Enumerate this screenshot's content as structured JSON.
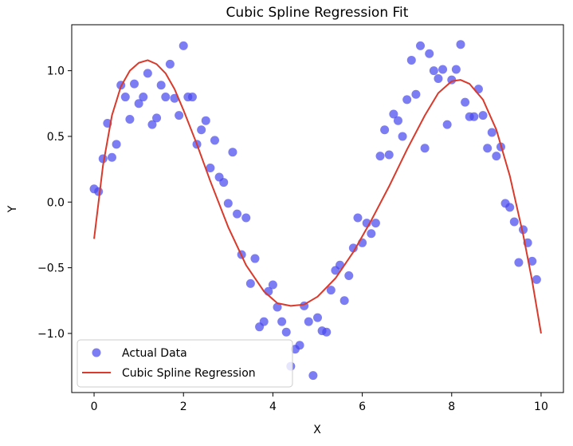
{
  "chart_data": {
    "type": "scatter",
    "title": "Cubic Spline Regression Fit",
    "xlabel": "X",
    "ylabel": "Y",
    "xlim": [
      -0.5,
      10.5
    ],
    "ylim": [
      -1.45,
      1.35
    ],
    "xticks": [
      0,
      2,
      4,
      6,
      8,
      10
    ],
    "xtick_labels": [
      "0",
      "2",
      "4",
      "6",
      "8",
      "10"
    ],
    "yticks": [
      -1.0,
      -0.5,
      0.0,
      0.5,
      1.0
    ],
    "ytick_labels": [
      "−1.0",
      "−0.5",
      "0.0",
      "0.5",
      "1.0"
    ],
    "grid": false,
    "legend_position": "lower-left",
    "series": [
      {
        "name": "Actual Data",
        "kind": "scatter",
        "color": "#4a4aee",
        "points": [
          [
            0.0,
            0.1
          ],
          [
            0.1,
            0.08
          ],
          [
            0.2,
            0.33
          ],
          [
            0.3,
            0.6
          ],
          [
            0.4,
            0.34
          ],
          [
            0.5,
            0.44
          ],
          [
            0.6,
            0.89
          ],
          [
            0.7,
            0.8
          ],
          [
            0.8,
            0.63
          ],
          [
            0.9,
            0.9
          ],
          [
            1.0,
            0.75
          ],
          [
            1.1,
            0.8
          ],
          [
            1.2,
            0.98
          ],
          [
            1.3,
            0.59
          ],
          [
            1.4,
            0.64
          ],
          [
            1.5,
            0.89
          ],
          [
            1.6,
            0.8
          ],
          [
            1.7,
            1.05
          ],
          [
            1.8,
            0.79
          ],
          [
            1.9,
            0.66
          ],
          [
            2.0,
            1.19
          ],
          [
            2.1,
            0.8
          ],
          [
            2.2,
            0.8
          ],
          [
            2.3,
            0.44
          ],
          [
            2.4,
            0.55
          ],
          [
            2.5,
            0.62
          ],
          [
            2.6,
            0.26
          ],
          [
            2.7,
            0.47
          ],
          [
            2.8,
            0.19
          ],
          [
            2.9,
            0.15
          ],
          [
            3.0,
            -0.01
          ],
          [
            3.1,
            0.38
          ],
          [
            3.2,
            -0.09
          ],
          [
            3.3,
            -0.4
          ],
          [
            3.4,
            -0.12
          ],
          [
            3.5,
            -0.62
          ],
          [
            3.6,
            -0.43
          ],
          [
            3.7,
            -0.95
          ],
          [
            3.8,
            -0.91
          ],
          [
            3.9,
            -0.68
          ],
          [
            4.0,
            -0.63
          ],
          [
            4.1,
            -0.8
          ],
          [
            4.2,
            -0.91
          ],
          [
            4.3,
            -0.99
          ],
          [
            4.4,
            -1.25
          ],
          [
            4.5,
            -1.12
          ],
          [
            4.6,
            -1.09
          ],
          [
            4.7,
            -0.79
          ],
          [
            4.8,
            -0.91
          ],
          [
            4.9,
            -1.32
          ],
          [
            5.0,
            -0.88
          ],
          [
            5.1,
            -0.98
          ],
          [
            5.2,
            -0.99
          ],
          [
            5.3,
            -0.67
          ],
          [
            5.4,
            -0.52
          ],
          [
            5.5,
            -0.48
          ],
          [
            5.6,
            -0.75
          ],
          [
            5.7,
            -0.56
          ],
          [
            5.8,
            -0.35
          ],
          [
            5.9,
            -0.12
          ],
          [
            6.0,
            -0.31
          ],
          [
            6.1,
            -0.16
          ],
          [
            6.2,
            -0.24
          ],
          [
            6.3,
            -0.16
          ],
          [
            6.4,
            0.35
          ],
          [
            6.5,
            0.55
          ],
          [
            6.6,
            0.36
          ],
          [
            6.7,
            0.67
          ],
          [
            6.8,
            0.62
          ],
          [
            6.9,
            0.5
          ],
          [
            7.0,
            0.78
          ],
          [
            7.1,
            1.08
          ],
          [
            7.2,
            0.82
          ],
          [
            7.3,
            1.19
          ],
          [
            7.4,
            0.41
          ],
          [
            7.5,
            1.13
          ],
          [
            7.6,
            1.0
          ],
          [
            7.7,
            0.94
          ],
          [
            7.8,
            1.01
          ],
          [
            7.9,
            0.59
          ],
          [
            8.0,
            0.93
          ],
          [
            8.1,
            1.01
          ],
          [
            8.2,
            1.2
          ],
          [
            8.3,
            0.76
          ],
          [
            8.4,
            0.65
          ],
          [
            8.5,
            0.65
          ],
          [
            8.6,
            0.86
          ],
          [
            8.7,
            0.66
          ],
          [
            8.8,
            0.41
          ],
          [
            8.9,
            0.53
          ],
          [
            9.0,
            0.35
          ],
          [
            9.1,
            0.42
          ],
          [
            9.2,
            -0.01
          ],
          [
            9.3,
            -0.04
          ],
          [
            9.4,
            -0.15
          ],
          [
            9.5,
            -0.46
          ],
          [
            9.6,
            -0.21
          ],
          [
            9.7,
            -0.31
          ],
          [
            9.8,
            -0.45
          ],
          [
            9.9,
            -0.59
          ]
        ]
      },
      {
        "name": "Cubic Spline Regression",
        "kind": "line",
        "color": "#d93a2b",
        "points": [
          [
            0.0,
            -0.28
          ],
          [
            0.2,
            0.28
          ],
          [
            0.4,
            0.66
          ],
          [
            0.6,
            0.88
          ],
          [
            0.8,
            1.0
          ],
          [
            1.0,
            1.06
          ],
          [
            1.2,
            1.08
          ],
          [
            1.4,
            1.05
          ],
          [
            1.6,
            0.98
          ],
          [
            1.8,
            0.86
          ],
          [
            2.0,
            0.7
          ],
          [
            2.3,
            0.44
          ],
          [
            2.6,
            0.16
          ],
          [
            3.0,
            -0.19
          ],
          [
            3.4,
            -0.48
          ],
          [
            3.8,
            -0.68
          ],
          [
            4.1,
            -0.77
          ],
          [
            4.4,
            -0.79
          ],
          [
            4.7,
            -0.78
          ],
          [
            5.0,
            -0.72
          ],
          [
            5.4,
            -0.58
          ],
          [
            5.8,
            -0.38
          ],
          [
            6.2,
            -0.14
          ],
          [
            6.6,
            0.12
          ],
          [
            7.0,
            0.4
          ],
          [
            7.4,
            0.66
          ],
          [
            7.7,
            0.83
          ],
          [
            8.0,
            0.92
          ],
          [
            8.2,
            0.93
          ],
          [
            8.4,
            0.9
          ],
          [
            8.7,
            0.78
          ],
          [
            9.0,
            0.55
          ],
          [
            9.3,
            0.2
          ],
          [
            9.6,
            -0.25
          ],
          [
            9.8,
            -0.6
          ],
          [
            10.0,
            -1.0
          ]
        ]
      }
    ]
  }
}
